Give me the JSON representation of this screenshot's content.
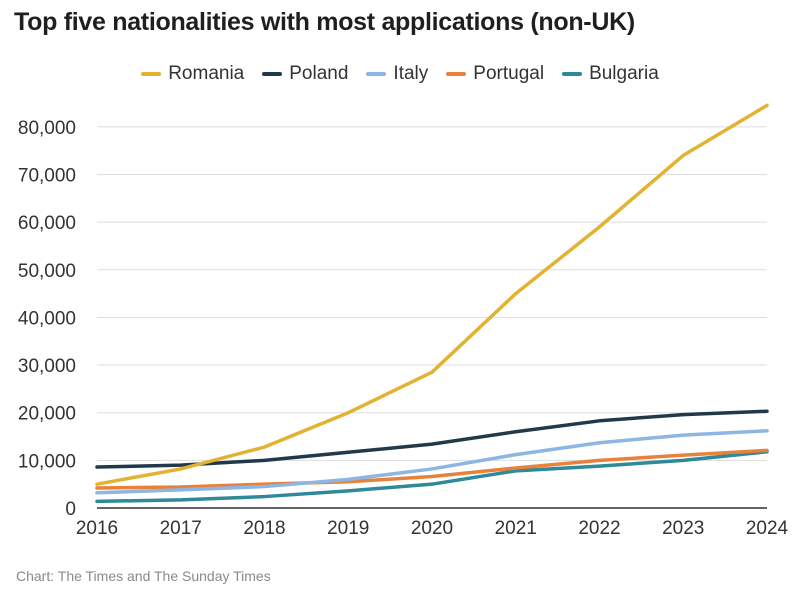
{
  "chart_data": {
    "type": "line",
    "title": "Top five nationalities with most applications (non-UK)",
    "x": [
      2016,
      2017,
      2018,
      2019,
      2020,
      2021,
      2022,
      2023,
      2024
    ],
    "x_tick_labels": [
      "2016",
      "2017",
      "2018",
      "2019",
      "2020",
      "2021",
      "2022",
      "2023",
      "2024"
    ],
    "ylim": [
      0,
      85000
    ],
    "y_ticks": [
      0,
      10000,
      20000,
      30000,
      40000,
      50000,
      60000,
      70000,
      80000
    ],
    "y_tick_labels": [
      "0",
      "10,000",
      "20,000",
      "30,000",
      "40,000",
      "50,000",
      "60,000",
      "70,000",
      "80,000"
    ],
    "grid": "horizontal",
    "legend_position": "top-center",
    "series": [
      {
        "name": "Romania",
        "color": "#E2B231",
        "values": [
          5000,
          8200,
          12800,
          20000,
          28500,
          45000,
          59000,
          74000,
          84500
        ]
      },
      {
        "name": "Poland",
        "color": "#22394A",
        "values": [
          8600,
          9000,
          10000,
          11700,
          13400,
          16000,
          18300,
          19600,
          20300
        ]
      },
      {
        "name": "Italy",
        "color": "#8DB6E3",
        "values": [
          3200,
          3800,
          4500,
          6000,
          8200,
          11200,
          13700,
          15300,
          16200
        ]
      },
      {
        "name": "Portugal",
        "color": "#E8823A",
        "values": [
          4200,
          4400,
          5000,
          5500,
          6600,
          8400,
          10000,
          11100,
          12100
        ]
      },
      {
        "name": "Bulgaria",
        "color": "#2E8A99",
        "values": [
          1400,
          1700,
          2400,
          3600,
          5000,
          7800,
          8800,
          10000,
          11800
        ]
      }
    ]
  },
  "source": "Chart: The Times and The Sunday Times"
}
